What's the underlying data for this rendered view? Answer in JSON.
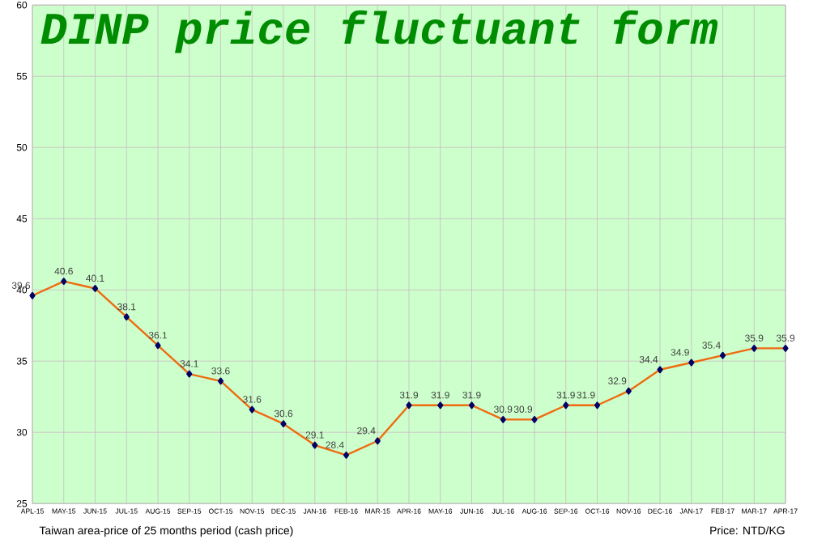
{
  "chart_data": {
    "type": "line",
    "title": "DINP price fluctuant form",
    "categories": [
      "APL-15",
      "MAY-15",
      "JUN-15",
      "JUL-15",
      "AUG-15",
      "SEP-15",
      "OCT-15",
      "NOV-15",
      "DEC-15",
      "JAN-16",
      "FEB-16",
      "MAR-15",
      "APR-16",
      "MAY-16",
      "JUN-16",
      "JUL-16",
      "AUG-16",
      "SEP-16",
      "OCT-16",
      "NOV-16",
      "DEC-16",
      "JAN-17",
      "FEB-17",
      "MAR-17",
      "APR-17"
    ],
    "series": [
      {
        "color": "#f06a10",
        "values": [
          39.6,
          40.6,
          40.1,
          38.1,
          36.1,
          34.1,
          33.6,
          31.6,
          30.6,
          29.1,
          28.4,
          29.4,
          31.9,
          31.9,
          31.9,
          30.9,
          30.9,
          31.9,
          31.9,
          32.9,
          34.4,
          34.9,
          35.4,
          35.9,
          35.9
        ]
      }
    ],
    "ylim": [
      25,
      60
    ],
    "yticks": [
      25,
      30,
      35,
      40,
      45,
      50,
      55,
      60
    ],
    "grid": true,
    "marker": "diamond",
    "line_style": "solid",
    "data_labels": true,
    "annotations": [
      "Taiwan area-price of 25 months period (cash price)",
      "Price: NTD/KG"
    ]
  }
}
